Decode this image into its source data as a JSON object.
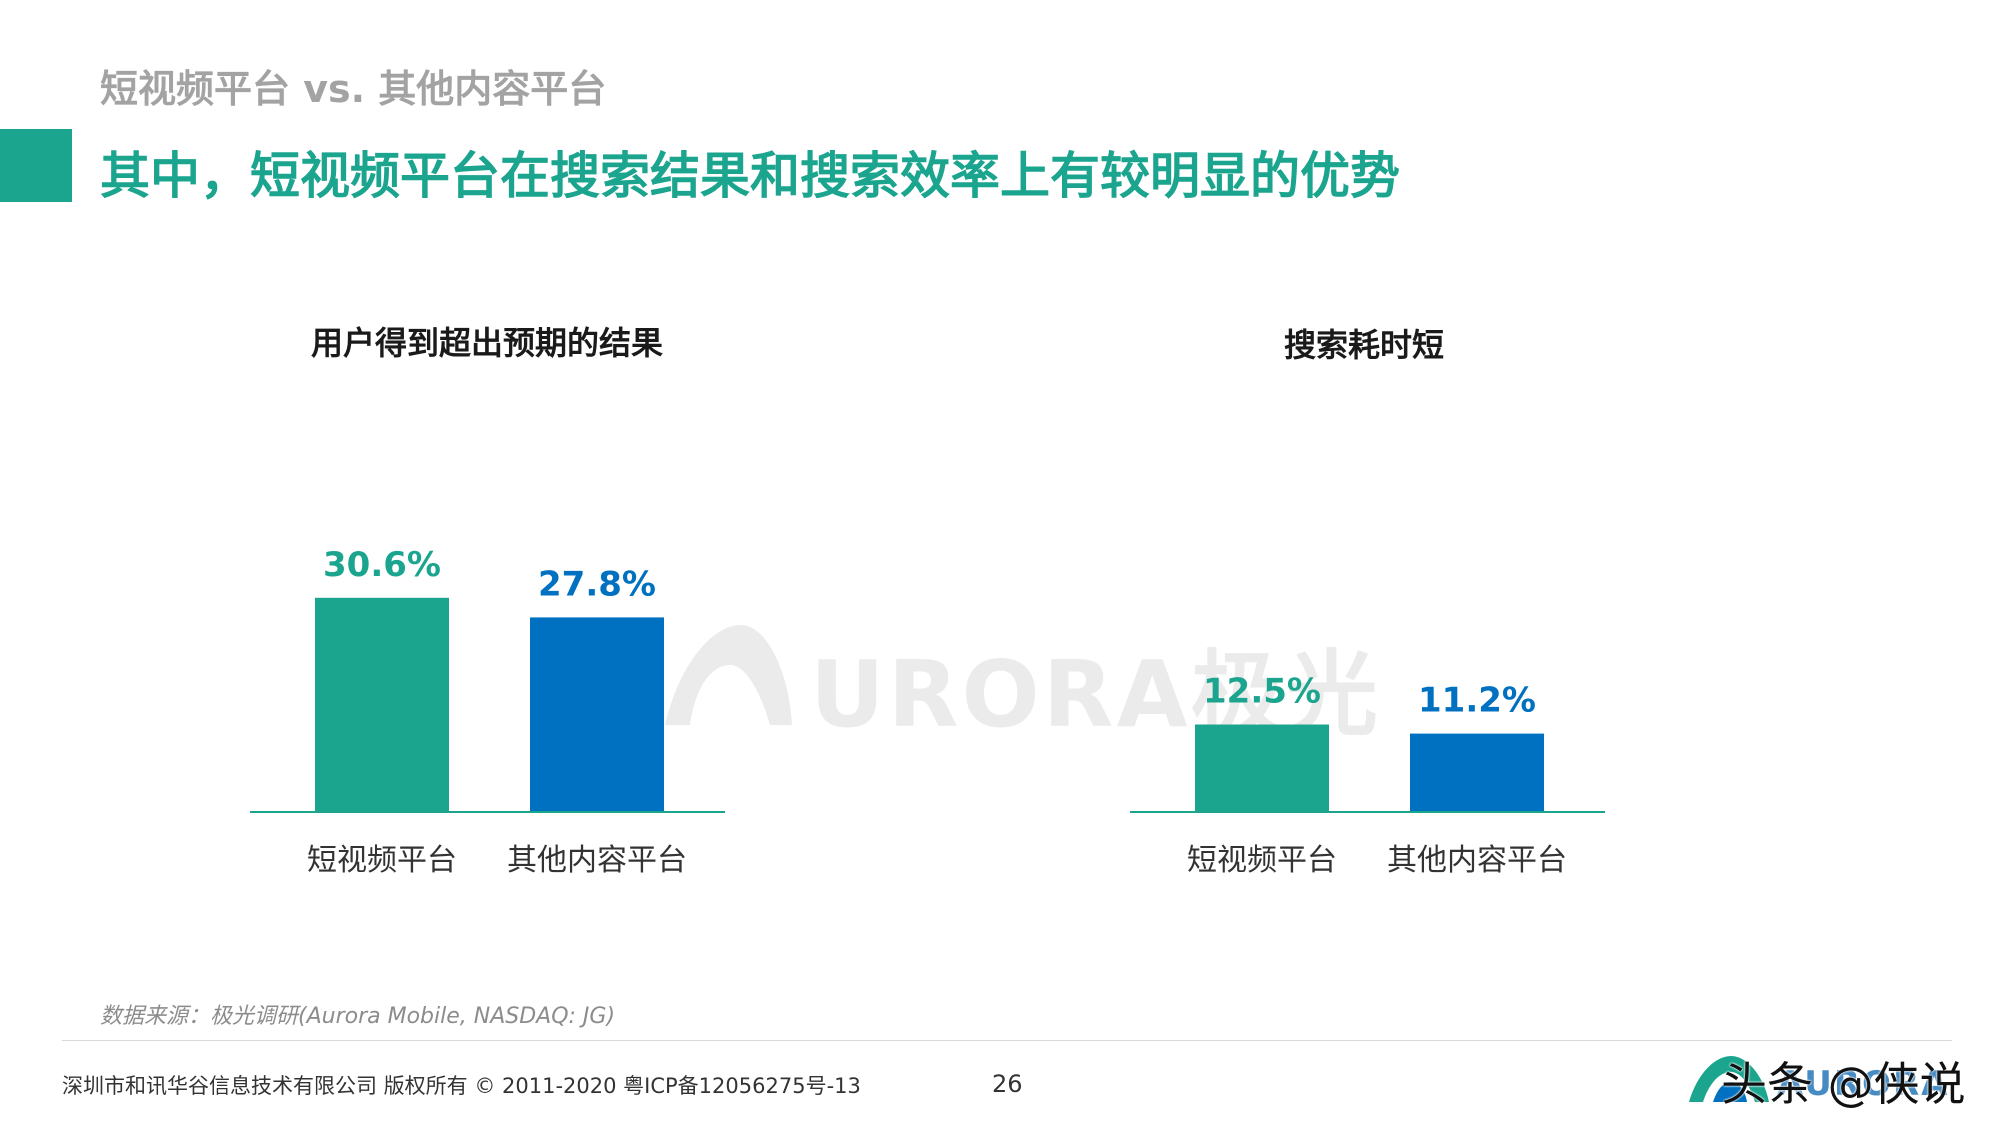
{
  "header": {
    "subtitle": "短视频平台 vs. 其他内容平台",
    "headline": "其中，短视频平台在搜索结果和搜索效率上有较明显的优势"
  },
  "colors": {
    "accent": "#1ba58f",
    "short_video": "#1ba58f",
    "other_platform": "#0070c0",
    "axis": "#1ba58f"
  },
  "watermark": {
    "text": "URORA极光"
  },
  "chart_data": [
    {
      "type": "bar",
      "title": "用户得到超出预期的结果",
      "categories": [
        "短视频平台",
        "其他内容平台"
      ],
      "values": [
        30.6,
        27.8
      ],
      "value_labels": [
        "30.6%",
        "27.8%"
      ],
      "unit": "%",
      "legend": "none",
      "grid": false
    },
    {
      "type": "bar",
      "title": "搜索耗时短",
      "categories": [
        "短视频平台",
        "其他内容平台"
      ],
      "values": [
        12.5,
        11.2
      ],
      "value_labels": [
        "12.5%",
        "11.2%"
      ],
      "unit": "%",
      "legend": "none",
      "grid": false
    }
  ],
  "footer": {
    "source": "数据来源：极光调研(Aurora Mobile, NASDAQ: JG)",
    "copyright": "深圳市和讯华谷信息技术有限公司 版权所有 © 2011-2020 粤ICP备12056275号-13",
    "page_number": "26",
    "brand_logo_text": "AURORA",
    "brand_overlay_text": "头条 @侠说",
    "brand_icon": "aurora-logo-icon"
  }
}
